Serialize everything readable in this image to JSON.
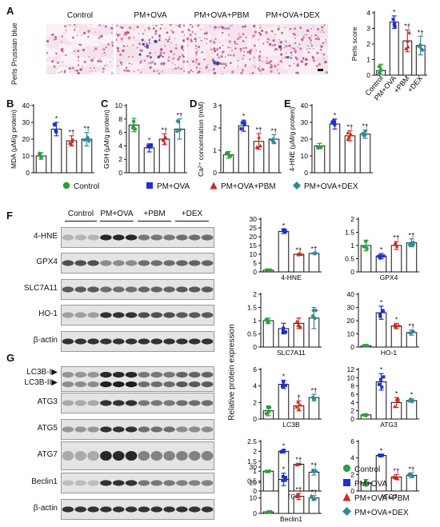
{
  "panels": {
    "A": "A",
    "B": "B",
    "C": "C",
    "D": "D",
    "E": "E",
    "F": "F",
    "G": "G"
  },
  "panel_a": {
    "side_label": "Perls Prussian blue",
    "groups": [
      "Control",
      "PM+OVA",
      "PM+OVA+PBM",
      "PM+OVA+DEX"
    ]
  },
  "group_names": [
    "Control",
    "PM+OVA",
    "PM+OVA+PBM",
    "PM+OVA+DEX"
  ],
  "group_colors": [
    "#2e9e3c",
    "#1f2fd0",
    "#d02a20",
    "#2f8a94"
  ],
  "group_symbols": [
    "circle-icon",
    "square-icon",
    "triangle-icon",
    "diamond-icon"
  ],
  "blot_f": {
    "groups": [
      "Control",
      "PM+OVA",
      "+PBM",
      "+DEX"
    ],
    "rows": [
      "4-HNE",
      "GPX4",
      "SLC7A11",
      "HO-1",
      "β-actin"
    ]
  },
  "blot_g": {
    "rows": [
      "LC3B-I▶",
      "ATG3",
      "ATG5",
      "ATG7",
      "Beclin1",
      "β-actin"
    ],
    "lc3b_second": "LC3B-II▶"
  },
  "rel_axis_label": "Relative protein expression",
  "chart_data": [
    {
      "id": "perls",
      "type": "bar",
      "ylabel": "Perls score",
      "ylim": [
        0,
        4
      ],
      "yticks": [
        0,
        1,
        2,
        3,
        4
      ],
      "categories": [
        "Control",
        "PM+OVA",
        "+PBM",
        "+DEX"
      ],
      "values": [
        0.3,
        3.4,
        2.2,
        1.9
      ],
      "errors": [
        0.4,
        0.4,
        0.7,
        0.6
      ],
      "annotations": [
        "",
        "*",
        "*†",
        "*†"
      ]
    },
    {
      "id": "mda",
      "type": "bar",
      "ylabel": "MDA (μM/g protein)",
      "ylim": [
        0,
        40
      ],
      "yticks": [
        0,
        10,
        20,
        30,
        40
      ],
      "categories": [
        "Control",
        "PM+OVA",
        "PM+OVA+PBM",
        "PM+OVA+DEX"
      ],
      "values": [
        10,
        26,
        19,
        20
      ],
      "errors": [
        2,
        4,
        3,
        4
      ],
      "annotations": [
        "",
        "*",
        "*†",
        "*†"
      ]
    },
    {
      "id": "gsh",
      "type": "bar",
      "ylabel": "GSH (μM/g protein)",
      "ylim": [
        0,
        10
      ],
      "yticks": [
        0,
        2,
        4,
        6,
        8,
        10
      ],
      "categories": [
        "Control",
        "PM+OVA",
        "PM+OVA+PBM",
        "PM+OVA+DEX"
      ],
      "values": [
        7.1,
        3.7,
        5.0,
        6.5
      ],
      "errors": [
        1.0,
        0.6,
        0.8,
        1.5
      ],
      "annotations": [
        "",
        "*",
        "*†",
        "*†"
      ]
    },
    {
      "id": "ca",
      "type": "bar",
      "ylabel": "Ca²⁺ concentration (mM)",
      "ylim": [
        0,
        3
      ],
      "yticks": [
        0,
        1,
        2,
        3
      ],
      "categories": [
        "Control",
        "PM+OVA",
        "PM+OVA+PBM",
        "PM+OVA+DEX"
      ],
      "values": [
        0.8,
        2.1,
        1.4,
        1.5
      ],
      "errors": [
        0.15,
        0.25,
        0.35,
        0.2
      ],
      "annotations": [
        "",
        "*",
        "*†",
        "*†"
      ]
    },
    {
      "id": "hne4",
      "type": "bar",
      "ylabel": "4-HNE (μM/g protein)",
      "ylim": [
        0,
        40
      ],
      "yticks": [
        0,
        10,
        20,
        30,
        40
      ],
      "categories": [
        "Control",
        "PM+OVA",
        "PM+OVA+PBM",
        "PM+OVA+DEX"
      ],
      "values": [
        16,
        29,
        22,
        23
      ],
      "errors": [
        1.5,
        3,
        3,
        2.5
      ],
      "annotations": [
        "",
        "*",
        "*†",
        "*†"
      ]
    },
    {
      "id": "w_hne",
      "type": "bar",
      "xlabel": "4-HNE",
      "ylim": [
        0,
        30
      ],
      "yticks": [
        0,
        5,
        10,
        15,
        20,
        25,
        30
      ],
      "values": [
        1,
        23,
        10,
        10.5
      ],
      "errors": [
        0.2,
        1.2,
        0.3,
        0.3
      ],
      "annotations": [
        "",
        "*",
        "*†",
        "*†"
      ]
    },
    {
      "id": "w_gpx4",
      "type": "bar",
      "xlabel": "GPX4",
      "ylim": [
        0,
        2
      ],
      "yticks": [
        0.0,
        0.5,
        1.0,
        1.5,
        2.0
      ],
      "values": [
        1.0,
        0.6,
        1.0,
        1.1
      ],
      "errors": [
        0.2,
        0.1,
        0.15,
        0.15
      ],
      "annotations": [
        "",
        "*",
        "*†",
        "*†"
      ]
    },
    {
      "id": "w_slc",
      "type": "bar",
      "xlabel": "SLC7A11",
      "ylim": [
        0,
        2
      ],
      "yticks": [
        0.0,
        0.5,
        1.0,
        1.5,
        2.0
      ],
      "values": [
        1.0,
        0.7,
        0.9,
        1.1
      ],
      "errors": [
        0.1,
        0.2,
        0.2,
        0.4
      ],
      "annotations": [
        "",
        "",
        "",
        ""
      ]
    },
    {
      "id": "w_ho1",
      "type": "bar",
      "xlabel": "HO-1",
      "ylim": [
        0,
        40
      ],
      "yticks": [
        0,
        10,
        20,
        30,
        40
      ],
      "values": [
        1,
        26,
        16,
        11
      ],
      "errors": [
        0.3,
        5,
        2,
        2
      ],
      "annotations": [
        "",
        "*",
        "*",
        "*†"
      ]
    },
    {
      "id": "w_lc3b",
      "type": "bar",
      "xlabel": "LC3B",
      "ylim": [
        0,
        6
      ],
      "yticks": [
        0,
        2,
        4,
        6
      ],
      "values": [
        1.0,
        4.2,
        1.6,
        2.6
      ],
      "errors": [
        0.6,
        0.5,
        0.6,
        0.4
      ],
      "annotations": [
        "",
        "*",
        "†",
        "*†"
      ]
    },
    {
      "id": "w_atg3",
      "type": "bar",
      "xlabel": "ATG3",
      "ylim": [
        0,
        12
      ],
      "yticks": [
        0,
        2,
        4,
        6,
        8,
        10,
        12
      ],
      "values": [
        1,
        9,
        4,
        4.5
      ],
      "errors": [
        0.2,
        2,
        1.2,
        0.4
      ],
      "annotations": [
        "",
        "*",
        "*",
        "*"
      ]
    },
    {
      "id": "w_atg5",
      "type": "bar",
      "xlabel": "ATG5",
      "ylim": [
        0,
        2.5
      ],
      "yticks": [
        0.0,
        0.5,
        1.0,
        1.5,
        2.0,
        2.5
      ],
      "values": [
        1.0,
        2.0,
        1.35,
        0.95
      ],
      "errors": [
        0.03,
        0.08,
        0.05,
        0.15
      ],
      "annotations": [
        "",
        "*",
        "*†",
        "*†"
      ]
    },
    {
      "id": "w_atg7",
      "type": "bar",
      "xlabel": "ATG7",
      "ylim": [
        0,
        6
      ],
      "yticks": [
        0,
        2,
        4,
        6
      ],
      "values": [
        1.0,
        4.3,
        1.7,
        1.9
      ],
      "errors": [
        0.4,
        0.1,
        0.3,
        0.3
      ],
      "annotations": [
        "",
        "*",
        "*†",
        "*†"
      ]
    },
    {
      "id": "w_beclin",
      "type": "bar",
      "xlabel": "Beclin1",
      "ylim": [
        0,
        30
      ],
      "yticks": [
        0,
        10,
        20,
        30
      ],
      "values": [
        1,
        22,
        11,
        10
      ],
      "errors": [
        0.2,
        4,
        2,
        1.5
      ],
      "annotations": [
        "",
        "*",
        "*†",
        "*†"
      ]
    }
  ]
}
